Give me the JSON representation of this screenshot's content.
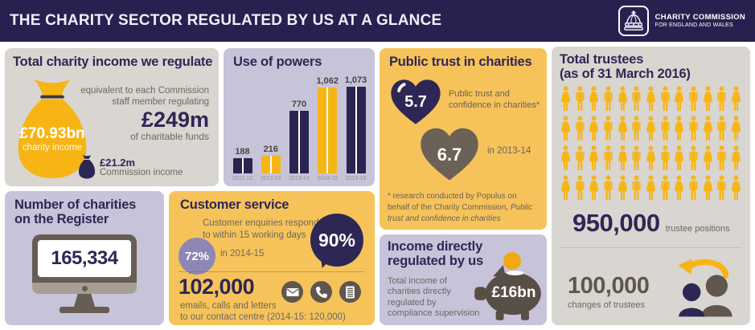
{
  "colors": {
    "header_bg": "#2a2050",
    "panel_gray": "#d9d5d1",
    "panel_lavender": "#c7c3d9",
    "panel_yellow": "#f6c35b",
    "accent_yellow": "#f7b515",
    "dark_purple": "#2e2755",
    "brown": "#60564c",
    "brown_light": "#a79e94",
    "gray_text": "#6e675f",
    "light_purple_bubble": "#8e87b5"
  },
  "header": {
    "title": "THE CHARITY SECTOR REGULATED BY US AT A GLANCE",
    "logo_line1": "CHARITY COMMISSION",
    "logo_line2": "FOR ENGLAND AND WALES"
  },
  "income_panel": {
    "title": "Total charity income we regulate",
    "bag_value": "£70.93bn",
    "bag_label": "charity income",
    "equiv_line1": "equivalent to each Commission",
    "equiv_line2": "staff member regulating",
    "equiv_value": "£249m",
    "equiv_label": "of charitable funds",
    "commission_value": "£21.2m",
    "commission_label": "Commission income"
  },
  "powers_panel": {
    "title": "Use of powers"
  },
  "chart_data": {
    "type": "bar",
    "title": "Use of powers",
    "categories": [
      "2011-12",
      "2012-13",
      "2013-14",
      "2014-15",
      "2015-16"
    ],
    "values": [
      188,
      216,
      770,
      1062,
      1073
    ],
    "value_labels": [
      "188",
      "216",
      "770",
      "1,062",
      "1,073"
    ],
    "bar_colors": [
      "#2b2350",
      "#f7b515",
      "#2b2350",
      "#f7b515",
      "#2b2350"
    ],
    "xlabel": "",
    "ylabel": "",
    "ylim": [
      0,
      1100
    ],
    "grid": false,
    "legend": false
  },
  "trust_panel": {
    "title": "Public trust in charities",
    "current_score": "5.7",
    "current_label_line1": "Public trust and",
    "current_label_line2": "confidence in charities*",
    "previous_score": "6.7",
    "previous_label": "in 2013-14",
    "footnote_normal": "* research conducted by Populus on behalf of the Charity Commission, ",
    "footnote_italic": "Public trust and confidence in charities"
  },
  "trustees_panel": {
    "title_line1": "Total trustees",
    "title_line2": "(as of 31 March 2016)",
    "pictogram_rows": 4,
    "pictogram_per_row": 13,
    "positions_value": "950,000",
    "positions_label": "trustee positions",
    "changes_value": "100,000",
    "changes_label": "changes of trustees"
  },
  "register_panel": {
    "title_line1": "Number of charities",
    "title_line2": "on the Register",
    "value": "165,334"
  },
  "service_panel": {
    "title": "Customer service",
    "desc_line1": "Customer enquiries responded",
    "desc_line2": "to within 15 working days",
    "rate_2014": "72%",
    "rate_2014_label": "in 2014-15",
    "rate_now": "90%",
    "contacts_value": "102,000",
    "contacts_line1": "emails, calls and letters",
    "contacts_line2": "to our contact centre (2014-15: 120,000)"
  },
  "regulated_panel": {
    "title_line1": "Income directly",
    "title_line2": "regulated by us",
    "desc_line1": "Total income of",
    "desc_line2": "charities directly",
    "desc_line3": "regulated by",
    "desc_line4": "compliance supervision",
    "value": "£16bn"
  }
}
